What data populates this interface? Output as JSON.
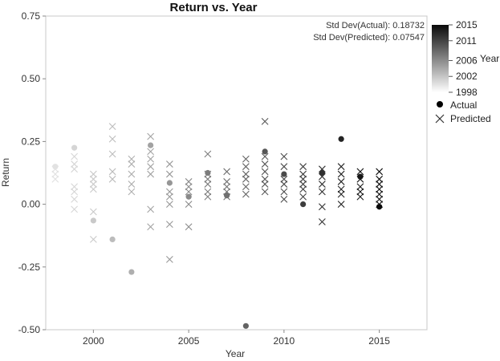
{
  "chart_data": {
    "type": "scatter",
    "title": "Return vs. Year",
    "xlabel": "Year",
    "ylabel": "Return",
    "xlim": [
      1997.5,
      2017.5
    ],
    "ylim": [
      -0.5,
      0.75
    ],
    "x_ticks": [
      "2000",
      "2005",
      "2010",
      "2015"
    ],
    "x_tick_values": [
      2000,
      2005,
      2010,
      2015
    ],
    "y_ticks": [
      "0.75",
      "0.50",
      "0.25",
      "0.00",
      "-0.25",
      "-0.50"
    ],
    "y_tick_values": [
      0.75,
      0.5,
      0.25,
      0.0,
      -0.25,
      -0.5
    ],
    "annotations": [
      "Std Dev(Actual): 0.18732",
      "Std Dev(Predicted): 0.07547"
    ],
    "color_scale": {
      "label": "Year",
      "min": 1998,
      "max": 2015,
      "tick_labels": [
        "2015",
        "2011",
        "2006",
        "2002",
        "1998"
      ],
      "tick_values": [
        2015,
        2011,
        2006,
        2002,
        1998
      ],
      "color_min": "#ffffff",
      "color_max": "#0a0a0a"
    },
    "legend": {
      "position": "right",
      "items": [
        {
          "label": "Actual",
          "marker": "circle"
        },
        {
          "label": "Predicted",
          "marker": "x"
        }
      ]
    },
    "series": [
      {
        "name": "Actual",
        "marker": "circle",
        "points": [
          {
            "x": 1998,
            "y": 0.15
          },
          {
            "x": 1999,
            "y": 0.225
          },
          {
            "x": 2000,
            "y": -0.065
          },
          {
            "x": 2001,
            "y": -0.14
          },
          {
            "x": 2002,
            "y": -0.27
          },
          {
            "x": 2003,
            "y": 0.235
          },
          {
            "x": 2004,
            "y": 0.085
          },
          {
            "x": 2005,
            "y": 0.03
          },
          {
            "x": 2006,
            "y": 0.125
          },
          {
            "x": 2007,
            "y": 0.035
          },
          {
            "x": 2008,
            "y": -0.485
          },
          {
            "x": 2009,
            "y": 0.21
          },
          {
            "x": 2010,
            "y": 0.12
          },
          {
            "x": 2011,
            "y": 0.0
          },
          {
            "x": 2012,
            "y": 0.125
          },
          {
            "x": 2013,
            "y": 0.26
          },
          {
            "x": 2014,
            "y": 0.11
          },
          {
            "x": 2015,
            "y": -0.01
          }
        ]
      },
      {
        "name": "Predicted",
        "marker": "x",
        "points": [
          {
            "x": 1998,
            "y": 0.14
          },
          {
            "x": 1998,
            "y": 0.12
          },
          {
            "x": 1998,
            "y": 0.1
          },
          {
            "x": 1999,
            "y": 0.19
          },
          {
            "x": 1999,
            "y": 0.16
          },
          {
            "x": 1999,
            "y": 0.14
          },
          {
            "x": 1999,
            "y": 0.07
          },
          {
            "x": 1999,
            "y": 0.05
          },
          {
            "x": 1999,
            "y": 0.02
          },
          {
            "x": 1999,
            "y": -0.02
          },
          {
            "x": 2000,
            "y": 0.12
          },
          {
            "x": 2000,
            "y": 0.1
          },
          {
            "x": 2000,
            "y": 0.08
          },
          {
            "x": 2000,
            "y": 0.06
          },
          {
            "x": 2000,
            "y": -0.03
          },
          {
            "x": 2000,
            "y": -0.14
          },
          {
            "x": 2001,
            "y": 0.31
          },
          {
            "x": 2001,
            "y": 0.26
          },
          {
            "x": 2001,
            "y": 0.2
          },
          {
            "x": 2001,
            "y": 0.13
          },
          {
            "x": 2001,
            "y": 0.1
          },
          {
            "x": 2002,
            "y": 0.18
          },
          {
            "x": 2002,
            "y": 0.16
          },
          {
            "x": 2002,
            "y": 0.12
          },
          {
            "x": 2002,
            "y": 0.08
          },
          {
            "x": 2002,
            "y": 0.05
          },
          {
            "x": 2003,
            "y": 0.27
          },
          {
            "x": 2003,
            "y": 0.21
          },
          {
            "x": 2003,
            "y": 0.18
          },
          {
            "x": 2003,
            "y": 0.15
          },
          {
            "x": 2003,
            "y": 0.12
          },
          {
            "x": 2003,
            "y": -0.02
          },
          {
            "x": 2003,
            "y": -0.09
          },
          {
            "x": 2004,
            "y": 0.16
          },
          {
            "x": 2004,
            "y": 0.12
          },
          {
            "x": 2004,
            "y": 0.05
          },
          {
            "x": 2004,
            "y": 0.03
          },
          {
            "x": 2004,
            "y": 0.0
          },
          {
            "x": 2004,
            "y": -0.08
          },
          {
            "x": 2004,
            "y": -0.22
          },
          {
            "x": 2005,
            "y": 0.09
          },
          {
            "x": 2005,
            "y": 0.07
          },
          {
            "x": 2005,
            "y": 0.05
          },
          {
            "x": 2005,
            "y": 0.0
          },
          {
            "x": 2005,
            "y": -0.09
          },
          {
            "x": 2006,
            "y": 0.2
          },
          {
            "x": 2006,
            "y": 0.12
          },
          {
            "x": 2006,
            "y": 0.1
          },
          {
            "x": 2006,
            "y": 0.08
          },
          {
            "x": 2006,
            "y": 0.05
          },
          {
            "x": 2006,
            "y": 0.03
          },
          {
            "x": 2007,
            "y": 0.13
          },
          {
            "x": 2007,
            "y": 0.09
          },
          {
            "x": 2007,
            "y": 0.07
          },
          {
            "x": 2007,
            "y": 0.05
          },
          {
            "x": 2007,
            "y": 0.03
          },
          {
            "x": 2008,
            "y": 0.18
          },
          {
            "x": 2008,
            "y": 0.15
          },
          {
            "x": 2008,
            "y": 0.12
          },
          {
            "x": 2008,
            "y": 0.1
          },
          {
            "x": 2008,
            "y": 0.07
          },
          {
            "x": 2008,
            "y": 0.04
          },
          {
            "x": 2009,
            "y": 0.33
          },
          {
            "x": 2009,
            "y": 0.19
          },
          {
            "x": 2009,
            "y": 0.16
          },
          {
            "x": 2009,
            "y": 0.13
          },
          {
            "x": 2009,
            "y": 0.1
          },
          {
            "x": 2009,
            "y": 0.08
          },
          {
            "x": 2009,
            "y": 0.05
          },
          {
            "x": 2010,
            "y": 0.19
          },
          {
            "x": 2010,
            "y": 0.15
          },
          {
            "x": 2010,
            "y": 0.1
          },
          {
            "x": 2010,
            "y": 0.08
          },
          {
            "x": 2010,
            "y": 0.05
          },
          {
            "x": 2010,
            "y": 0.02
          },
          {
            "x": 2011,
            "y": 0.15
          },
          {
            "x": 2011,
            "y": 0.12
          },
          {
            "x": 2011,
            "y": 0.1
          },
          {
            "x": 2011,
            "y": 0.08
          },
          {
            "x": 2011,
            "y": 0.06
          },
          {
            "x": 2011,
            "y": 0.03
          },
          {
            "x": 2012,
            "y": 0.14
          },
          {
            "x": 2012,
            "y": 0.11
          },
          {
            "x": 2012,
            "y": 0.08
          },
          {
            "x": 2012,
            "y": 0.05
          },
          {
            "x": 2012,
            "y": -0.01
          },
          {
            "x": 2012,
            "y": -0.07
          },
          {
            "x": 2013,
            "y": 0.15
          },
          {
            "x": 2013,
            "y": 0.12
          },
          {
            "x": 2013,
            "y": 0.09
          },
          {
            "x": 2013,
            "y": 0.06
          },
          {
            "x": 2013,
            "y": 0.04
          },
          {
            "x": 2013,
            "y": 0.0
          },
          {
            "x": 2014,
            "y": 0.13
          },
          {
            "x": 2014,
            "y": 0.1
          },
          {
            "x": 2014,
            "y": 0.07
          },
          {
            "x": 2014,
            "y": 0.05
          },
          {
            "x": 2014,
            "y": 0.03
          },
          {
            "x": 2015,
            "y": 0.13
          },
          {
            "x": 2015,
            "y": 0.1
          },
          {
            "x": 2015,
            "y": 0.08
          },
          {
            "x": 2015,
            "y": 0.06
          },
          {
            "x": 2015,
            "y": 0.04
          },
          {
            "x": 2015,
            "y": 0.02
          },
          {
            "x": 2015,
            "y": 0.0
          }
        ]
      }
    ]
  }
}
